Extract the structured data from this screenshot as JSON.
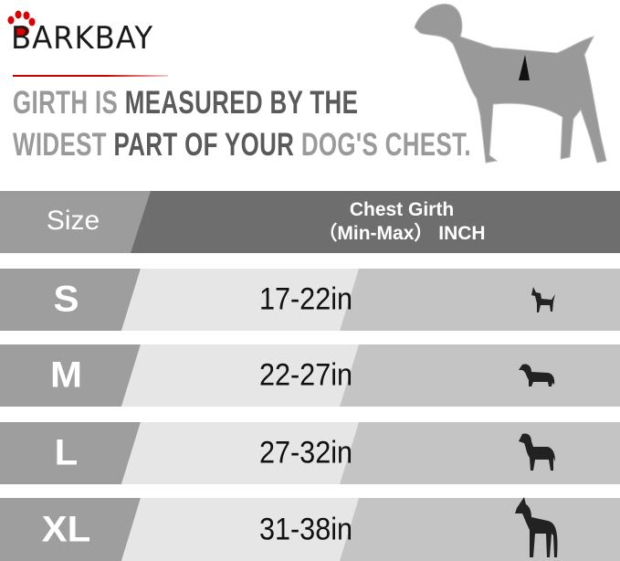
{
  "brand": {
    "logo_text": "BARKBAY"
  },
  "headline": {
    "line1": [
      {
        "text": "GIRTH IS ",
        "tone": "light"
      },
      {
        "text": "MEASURED BY THE",
        "tone": "dark"
      }
    ],
    "line2": [
      {
        "text": "WIDEST ",
        "tone": "light"
      },
      {
        "text": "PART OF YOUR ",
        "tone": "dark"
      },
      {
        "text": "DOG'S CHEST.",
        "tone": "light"
      }
    ]
  },
  "table": {
    "header": {
      "size": "Size",
      "girth_line1": "Chest Girth",
      "girth_line2": "（Min-Max） INCH"
    },
    "rows": [
      {
        "size": "S",
        "girth": "17-22in",
        "icon": "chihuahua-icon"
      },
      {
        "size": "M",
        "girth": "22-27in",
        "icon": "dachshund-icon"
      },
      {
        "size": "L",
        "girth": "27-32in",
        "icon": "labrador-icon"
      },
      {
        "size": "XL",
        "girth": "31-38in",
        "icon": "great-dane-icon"
      }
    ]
  },
  "colors": {
    "header_left": "#9c9c9c",
    "header_right": "#6e6e6e",
    "size_cell": "#9e9e9e",
    "girth_cell": "#e6e6e6",
    "icon_cell": "#c4c4c4",
    "logo_accent": "#cc0000"
  }
}
